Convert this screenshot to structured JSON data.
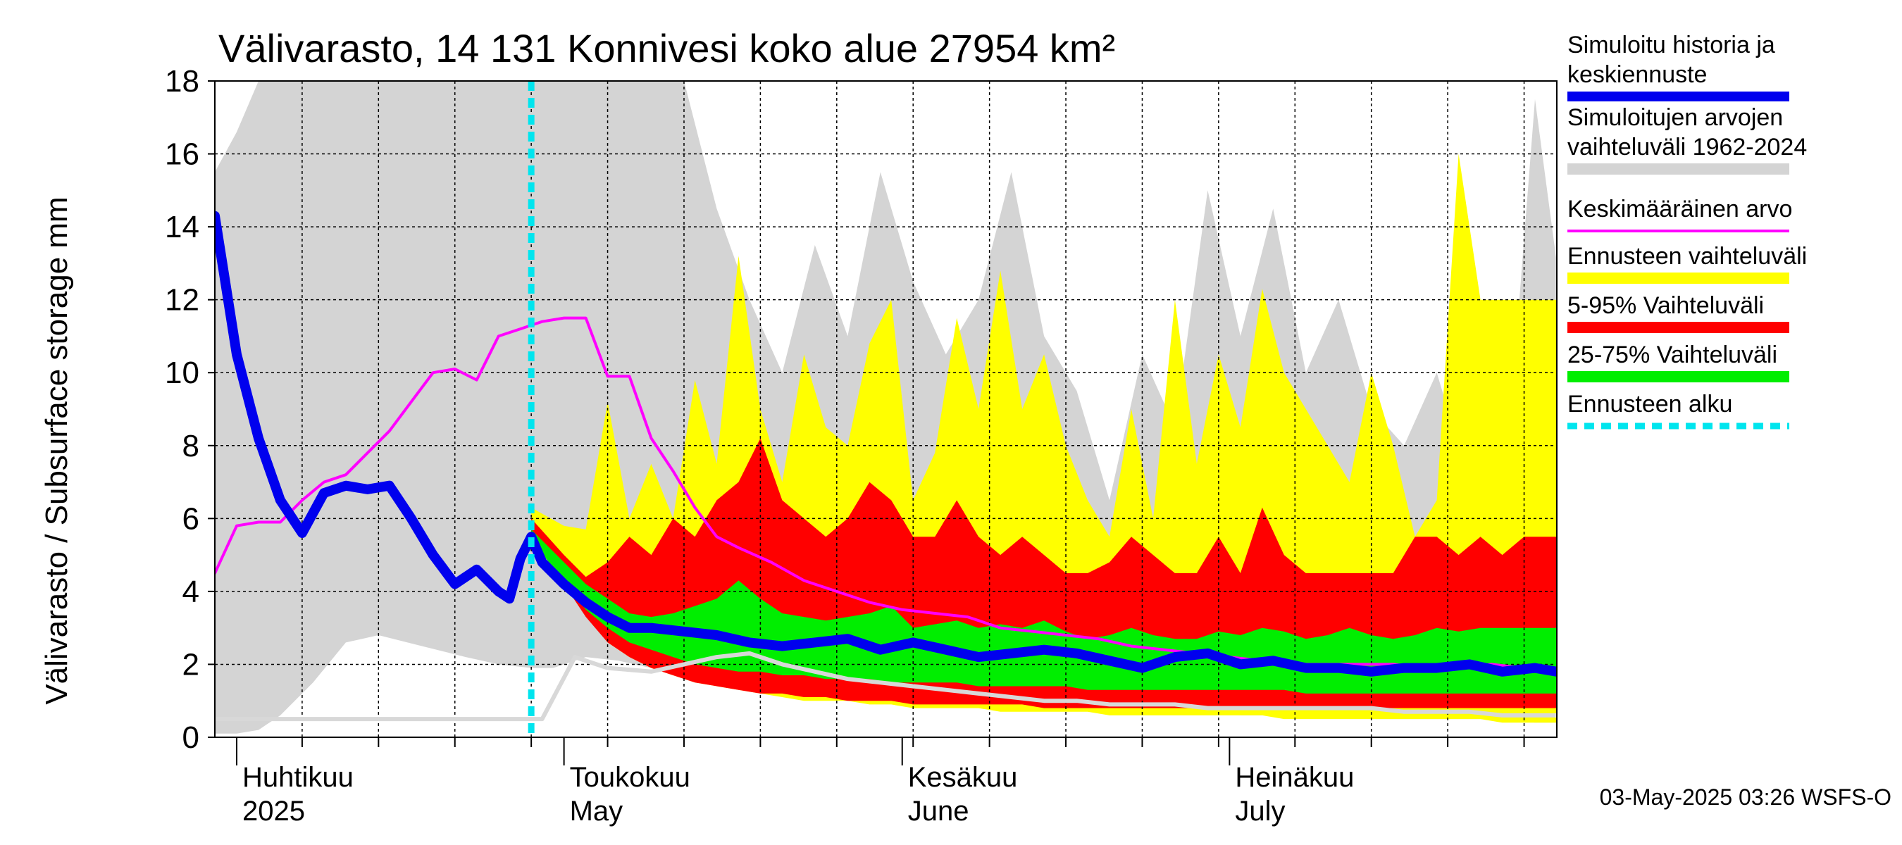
{
  "chart_data": {
    "type": "area",
    "title": "Välivarasto, 14 131 Konnivesi koko alue 27954 km²",
    "ylabel": "Välivarasto / Subsurface storage  mm",
    "ylim": [
      0,
      18
    ],
    "yticks": [
      "0",
      "2",
      "4",
      "6",
      "8",
      "10",
      "12",
      "14",
      "16",
      "18"
    ],
    "x_start": "2025-03-30",
    "x_end": "2025-07-31",
    "forecast_start": "2025-04-28",
    "month_labels": [
      {
        "fi": "Huhtikuu",
        "en": "2025",
        "date": "2025-04-01"
      },
      {
        "fi": "Toukokuu",
        "en": "May",
        "date": "2025-05-01"
      },
      {
        "fi": "Kesäkuu",
        "en": "June",
        "date": "2025-06-01"
      },
      {
        "fi": "Heinäkuu",
        "en": "July",
        "date": "2025-07-01"
      }
    ],
    "grid": true,
    "legend_placement": "right",
    "legend": [
      {
        "label1": "Simuloitu historia ja",
        "label2": "keskiennuste",
        "color": "#0000ee",
        "style": "thick"
      },
      {
        "label1": "Simuloitujen arvojen",
        "label2": "vaihteluväli 1962-2024",
        "color": "#d4d4d4",
        "style": "band"
      },
      {
        "label1": "Keskimääräinen arvo",
        "label2": "",
        "color": "#ff00ff",
        "style": "line"
      },
      {
        "label1": "Ennusteen vaihteluväli",
        "label2": "",
        "color": "#ffff00",
        "style": "band"
      },
      {
        "label1": "5-95% Vaihteluväli",
        "label2": "",
        "color": "#ff0000",
        "style": "band"
      },
      {
        "label1": "25-75% Vaihteluväli",
        "label2": "",
        "color": "#00ee00",
        "style": "band"
      },
      {
        "label1": "Ennusteen alku",
        "label2": "",
        "color": "#00e5ee",
        "style": "dashed"
      }
    ],
    "series": {
      "hist_range": {
        "x": [
          "2025-03-30",
          "2025-04-01",
          "2025-04-03",
          "2025-04-05",
          "2025-04-08",
          "2025-04-11",
          "2025-04-14",
          "2025-04-18",
          "2025-04-22",
          "2025-04-25",
          "2025-04-28",
          "2025-04-30",
          "2025-05-03",
          "2025-05-06",
          "2025-05-09",
          "2025-05-12",
          "2025-05-15",
          "2025-05-18",
          "2025-05-21",
          "2025-05-24",
          "2025-05-27",
          "2025-05-30",
          "2025-06-02",
          "2025-06-05",
          "2025-06-08",
          "2025-06-11",
          "2025-06-14",
          "2025-06-17",
          "2025-06-20",
          "2025-06-23",
          "2025-06-26",
          "2025-06-29",
          "2025-07-02",
          "2025-07-05",
          "2025-07-08",
          "2025-07-11",
          "2025-07-14",
          "2025-07-17",
          "2025-07-20",
          "2025-07-23",
          "2025-07-26",
          "2025-07-29",
          "2025-07-31"
        ],
        "low": [
          0.1,
          0.1,
          0.2,
          0.6,
          1.5,
          2.6,
          2.8,
          2.5,
          2.2,
          2.0,
          1.9,
          1.9,
          2.2,
          2.1,
          1.9,
          1.8,
          1.7,
          1.6,
          1.5,
          1.4,
          1.3,
          1.2,
          1.1,
          1.0,
          1.0,
          0.9,
          0.9,
          0.8,
          0.8,
          0.7,
          0.7,
          0.7,
          0.6,
          0.6,
          0.6,
          0.6,
          0.5,
          0.5,
          0.5,
          0.5,
          0.5,
          0.4,
          0.4
        ],
        "high": [
          15.5,
          16.6,
          18,
          18,
          18,
          18,
          18,
          18,
          18,
          18,
          18,
          18,
          18,
          18,
          18,
          18,
          14.5,
          12.0,
          10.0,
          13.5,
          11.0,
          15.5,
          12.5,
          10.5,
          12.0,
          15.5,
          11.0,
          9.5,
          6.5,
          10.5,
          8.5,
          15.0,
          11.0,
          14.5,
          10.0,
          12.0,
          9.0,
          8.0,
          10.0,
          7.0,
          6.0,
          17.5,
          13.0
        ]
      },
      "fc_range": {
        "x": [
          "2025-04-28",
          "2025-05-01",
          "2025-05-03",
          "2025-05-05",
          "2025-05-07",
          "2025-05-09",
          "2025-05-11",
          "2025-05-13",
          "2025-05-15",
          "2025-05-17",
          "2025-05-19",
          "2025-05-21",
          "2025-05-23",
          "2025-05-25",
          "2025-05-27",
          "2025-05-29",
          "2025-05-31",
          "2025-06-02",
          "2025-06-04",
          "2025-06-06",
          "2025-06-08",
          "2025-06-10",
          "2025-06-12",
          "2025-06-14",
          "2025-06-16",
          "2025-06-18",
          "2025-06-20",
          "2025-06-22",
          "2025-06-24",
          "2025-06-26",
          "2025-06-28",
          "2025-06-30",
          "2025-07-02",
          "2025-07-04",
          "2025-07-06",
          "2025-07-08",
          "2025-07-10",
          "2025-07-12",
          "2025-07-14",
          "2025-07-16",
          "2025-07-18",
          "2025-07-20",
          "2025-07-22",
          "2025-07-24",
          "2025-07-26",
          "2025-07-28",
          "2025-07-30",
          "2025-07-31"
        ],
        "low": [
          5.6,
          4.4,
          3.4,
          2.6,
          2.2,
          1.9,
          1.7,
          1.5,
          1.4,
          1.3,
          1.2,
          1.1,
          1.0,
          1.0,
          1.0,
          0.9,
          0.9,
          0.8,
          0.8,
          0.8,
          0.8,
          0.7,
          0.7,
          0.7,
          0.7,
          0.7,
          0.6,
          0.6,
          0.6,
          0.6,
          0.6,
          0.6,
          0.6,
          0.6,
          0.5,
          0.5,
          0.5,
          0.5,
          0.5,
          0.5,
          0.5,
          0.5,
          0.5,
          0.5,
          0.4,
          0.4,
          0.4,
          0.4
        ],
        "high": [
          6.3,
          5.8,
          5.7,
          9.2,
          6.0,
          7.5,
          6.0,
          9.8,
          7.5,
          13.2,
          9.0,
          7.0,
          10.5,
          8.5,
          8.0,
          10.8,
          12.0,
          6.5,
          7.8,
          11.5,
          9.0,
          12.8,
          9.0,
          10.5,
          8.0,
          6.5,
          5.5,
          9.0,
          6.0,
          12.0,
          7.5,
          10.5,
          8.5,
          12.3,
          10.0,
          9.0,
          8.0,
          7.0,
          10.0,
          8.0,
          5.5,
          6.5,
          16.0,
          12.0,
          12.0,
          12.0,
          12.0,
          12.0
        ]
      },
      "p05_95": {
        "x": [
          "2025-04-28",
          "2025-05-01",
          "2025-05-03",
          "2025-05-05",
          "2025-05-07",
          "2025-05-09",
          "2025-05-11",
          "2025-05-13",
          "2025-05-15",
          "2025-05-17",
          "2025-05-19",
          "2025-05-21",
          "2025-05-23",
          "2025-05-25",
          "2025-05-27",
          "2025-05-29",
          "2025-05-31",
          "2025-06-02",
          "2025-06-04",
          "2025-06-06",
          "2025-06-08",
          "2025-06-10",
          "2025-06-12",
          "2025-06-14",
          "2025-06-16",
          "2025-06-18",
          "2025-06-20",
          "2025-06-22",
          "2025-06-24",
          "2025-06-26",
          "2025-06-28",
          "2025-06-30",
          "2025-07-02",
          "2025-07-04",
          "2025-07-06",
          "2025-07-08",
          "2025-07-10",
          "2025-07-12",
          "2025-07-14",
          "2025-07-16",
          "2025-07-18",
          "2025-07-20",
          "2025-07-22",
          "2025-07-24",
          "2025-07-26",
          "2025-07-28",
          "2025-07-30",
          "2025-07-31"
        ],
        "low": [
          5.5,
          4.2,
          3.3,
          2.6,
          2.2,
          1.9,
          1.7,
          1.5,
          1.4,
          1.3,
          1.2,
          1.2,
          1.1,
          1.1,
          1.0,
          1.0,
          1.0,
          0.9,
          0.9,
          0.9,
          0.9,
          0.9,
          0.9,
          0.8,
          0.8,
          0.8,
          0.8,
          0.8,
          0.8,
          0.8,
          0.8,
          0.8,
          0.8,
          0.8,
          0.8,
          0.8,
          0.8,
          0.8,
          0.8,
          0.8,
          0.8,
          0.8,
          0.8,
          0.8,
          0.8,
          0.8,
          0.8,
          0.8
        ],
        "high": [
          6.0,
          5.0,
          4.4,
          4.8,
          5.5,
          5.0,
          6.0,
          5.5,
          6.5,
          7.0,
          8.2,
          6.5,
          6.0,
          5.5,
          6.0,
          7.0,
          6.5,
          5.5,
          5.5,
          6.5,
          5.5,
          5.0,
          5.5,
          5.0,
          4.5,
          4.5,
          4.8,
          5.5,
          5.0,
          4.5,
          4.5,
          5.5,
          4.5,
          6.3,
          5.0,
          4.5,
          4.5,
          4.5,
          4.5,
          4.5,
          5.5,
          5.5,
          5.0,
          5.5,
          5.0,
          5.5,
          5.5,
          5.5
        ]
      },
      "p25_75": {
        "x": [
          "2025-04-28",
          "2025-05-01",
          "2025-05-03",
          "2025-05-05",
          "2025-05-07",
          "2025-05-09",
          "2025-05-11",
          "2025-05-13",
          "2025-05-15",
          "2025-05-17",
          "2025-05-19",
          "2025-05-21",
          "2025-05-23",
          "2025-05-25",
          "2025-05-27",
          "2025-05-29",
          "2025-05-31",
          "2025-06-02",
          "2025-06-04",
          "2025-06-06",
          "2025-06-08",
          "2025-06-10",
          "2025-06-12",
          "2025-06-14",
          "2025-06-16",
          "2025-06-18",
          "2025-06-20",
          "2025-06-22",
          "2025-06-24",
          "2025-06-26",
          "2025-06-28",
          "2025-06-30",
          "2025-07-02",
          "2025-07-04",
          "2025-07-06",
          "2025-07-08",
          "2025-07-10",
          "2025-07-12",
          "2025-07-14",
          "2025-07-16",
          "2025-07-18",
          "2025-07-20",
          "2025-07-22",
          "2025-07-24",
          "2025-07-26",
          "2025-07-28",
          "2025-07-30",
          "2025-07-31"
        ],
        "low": [
          5.4,
          4.3,
          3.5,
          3.0,
          2.6,
          2.4,
          2.2,
          2.0,
          1.9,
          1.8,
          1.8,
          1.7,
          1.7,
          1.6,
          1.6,
          1.6,
          1.5,
          1.5,
          1.5,
          1.5,
          1.4,
          1.4,
          1.4,
          1.4,
          1.4,
          1.3,
          1.3,
          1.3,
          1.3,
          1.3,
          1.3,
          1.3,
          1.3,
          1.3,
          1.3,
          1.2,
          1.2,
          1.2,
          1.2,
          1.2,
          1.2,
          1.2,
          1.2,
          1.2,
          1.2,
          1.2,
          1.2,
          1.2
        ],
        "high": [
          5.7,
          4.8,
          4.2,
          3.8,
          3.4,
          3.3,
          3.4,
          3.6,
          3.8,
          4.3,
          3.8,
          3.4,
          3.3,
          3.2,
          3.3,
          3.4,
          3.6,
          3.0,
          3.1,
          3.2,
          3.0,
          3.1,
          3.0,
          3.2,
          2.9,
          2.7,
          2.8,
          3.0,
          2.8,
          2.7,
          2.7,
          2.9,
          2.8,
          3.0,
          2.9,
          2.7,
          2.8,
          3.0,
          2.8,
          2.7,
          2.8,
          3.0,
          2.9,
          3.0,
          3.0,
          3.0,
          3.0,
          3.0
        ]
      },
      "median": {
        "x": [
          "2025-03-30",
          "2025-04-01",
          "2025-04-03",
          "2025-04-05",
          "2025-04-08",
          "2025-04-10",
          "2025-04-12",
          "2025-04-15",
          "2025-04-18",
          "2025-04-21",
          "2025-04-24",
          "2025-04-27",
          "2025-04-29",
          "2025-05-02",
          "2025-05-05",
          "2025-05-09",
          "2025-05-12",
          "2025-05-15",
          "2025-05-18",
          "2025-05-21",
          "2025-05-24",
          "2025-05-27",
          "2025-05-30",
          "2025-06-02",
          "2025-06-05",
          "2025-06-08",
          "2025-06-11",
          "2025-06-14",
          "2025-06-17",
          "2025-06-20",
          "2025-06-23",
          "2025-06-26",
          "2025-06-29",
          "2025-07-02",
          "2025-07-05",
          "2025-07-08",
          "2025-07-11",
          "2025-07-14",
          "2025-07-17",
          "2025-07-20",
          "2025-07-23",
          "2025-07-26",
          "2025-07-29",
          "2025-07-31"
        ],
        "values": [
          0.5,
          0.5,
          0.5,
          0.5,
          0.5,
          0.5,
          0.5,
          0.5,
          0.5,
          0.5,
          0.5,
          0.5,
          0.5,
          2.2,
          1.9,
          1.8,
          2.0,
          2.2,
          2.3,
          2.0,
          1.8,
          1.6,
          1.5,
          1.4,
          1.3,
          1.2,
          1.1,
          1.0,
          1.0,
          0.9,
          0.9,
          0.9,
          0.8,
          0.8,
          0.8,
          0.8,
          0.8,
          0.8,
          0.7,
          0.7,
          0.7,
          0.6,
          0.6,
          0.6
        ]
      },
      "mean": {
        "x": [
          "2025-03-30",
          "2025-04-01",
          "2025-04-03",
          "2025-04-05",
          "2025-04-07",
          "2025-04-09",
          "2025-04-11",
          "2025-04-13",
          "2025-04-15",
          "2025-04-17",
          "2025-04-19",
          "2025-04-21",
          "2025-04-23",
          "2025-04-25",
          "2025-04-27",
          "2025-04-29",
          "2025-05-01",
          "2025-05-03",
          "2025-05-05",
          "2025-05-07",
          "2025-05-09",
          "2025-05-11",
          "2025-05-13",
          "2025-05-15",
          "2025-05-17",
          "2025-05-20",
          "2025-05-23",
          "2025-05-26",
          "2025-05-29",
          "2025-06-01",
          "2025-06-04",
          "2025-06-07",
          "2025-06-10",
          "2025-06-13",
          "2025-06-16",
          "2025-06-19",
          "2025-06-22",
          "2025-06-25",
          "2025-06-28",
          "2025-07-01",
          "2025-07-04",
          "2025-07-07",
          "2025-07-10",
          "2025-07-13",
          "2025-07-16",
          "2025-07-19",
          "2025-07-22",
          "2025-07-25",
          "2025-07-28",
          "2025-07-31"
        ],
        "values": [
          4.5,
          5.8,
          5.9,
          5.9,
          6.5,
          7.0,
          7.2,
          7.8,
          8.4,
          9.2,
          10.0,
          10.1,
          9.8,
          11.0,
          11.2,
          11.4,
          11.5,
          11.5,
          9.9,
          9.9,
          8.2,
          7.3,
          6.3,
          5.5,
          5.2,
          4.8,
          4.3,
          4.0,
          3.7,
          3.5,
          3.4,
          3.3,
          3.0,
          2.9,
          2.8,
          2.7,
          2.5,
          2.4,
          2.3,
          2.2,
          2.1,
          2.0,
          2.0,
          2.0,
          2.0,
          1.9,
          1.9,
          2.0,
          1.9,
          1.8
        ]
      },
      "simulated": {
        "x": [
          "2025-03-30",
          "2025-04-01",
          "2025-04-03",
          "2025-04-05",
          "2025-04-07",
          "2025-04-09",
          "2025-04-11",
          "2025-04-13",
          "2025-04-15",
          "2025-04-17",
          "2025-04-19",
          "2025-04-21",
          "2025-04-23",
          "2025-04-25",
          "2025-04-26",
          "2025-04-27",
          "2025-04-28",
          "2025-04-29",
          "2025-05-01",
          "2025-05-03",
          "2025-05-05",
          "2025-05-07",
          "2025-05-09",
          "2025-05-12",
          "2025-05-15",
          "2025-05-18",
          "2025-05-21",
          "2025-05-24",
          "2025-05-27",
          "2025-05-30",
          "2025-06-02",
          "2025-06-05",
          "2025-06-08",
          "2025-06-11",
          "2025-06-14",
          "2025-06-17",
          "2025-06-20",
          "2025-06-23",
          "2025-06-26",
          "2025-06-29",
          "2025-07-02",
          "2025-07-05",
          "2025-07-08",
          "2025-07-11",
          "2025-07-14",
          "2025-07-17",
          "2025-07-20",
          "2025-07-23",
          "2025-07-26",
          "2025-07-29",
          "2025-07-31"
        ],
        "values": [
          14.3,
          10.5,
          8.2,
          6.5,
          5.6,
          6.7,
          6.9,
          6.8,
          6.9,
          6.0,
          5.0,
          4.2,
          4.6,
          4.0,
          3.8,
          4.9,
          5.5,
          4.8,
          4.2,
          3.7,
          3.3,
          3.0,
          3.0,
          2.9,
          2.8,
          2.6,
          2.5,
          2.6,
          2.7,
          2.4,
          2.6,
          2.4,
          2.2,
          2.3,
          2.4,
          2.3,
          2.1,
          1.9,
          2.2,
          2.3,
          2.0,
          2.1,
          1.9,
          1.9,
          1.8,
          1.9,
          1.9,
          2.0,
          1.8,
          1.9,
          1.8
        ]
      }
    }
  },
  "footer": "03-May-2025 03:26 WSFS-O"
}
